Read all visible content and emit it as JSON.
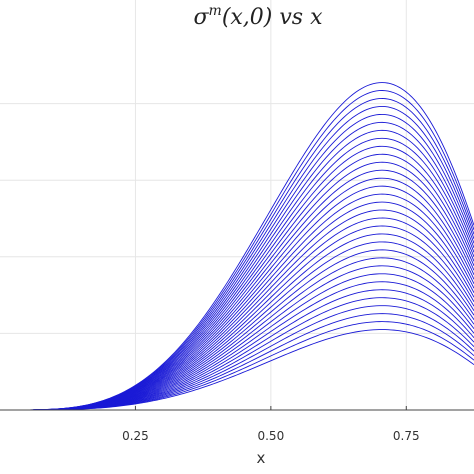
{
  "chart_data": {
    "type": "line",
    "title": {
      "sigma": "σ",
      "sup": "m",
      "rest": "(x,0) vs x"
    },
    "xlabel": "x",
    "ylabel": "",
    "x_ticks": [
      "0.25",
      "0.50",
      "0.75"
    ],
    "x_tick_values": [
      0.25,
      0.5,
      0.75
    ],
    "xlim": [
      0.0,
      0.875
    ],
    "ylim": [
      0.0,
      1.0
    ],
    "y_grid_values": [
      0.2,
      0.4,
      0.6,
      0.8
    ],
    "grid": true,
    "legend": "none",
    "line_color": "#1a1ad6",
    "series_count": 32,
    "curve": {
      "peak_x": 0.705,
      "min_peak": 0.21,
      "max_peak": 0.855
    }
  }
}
